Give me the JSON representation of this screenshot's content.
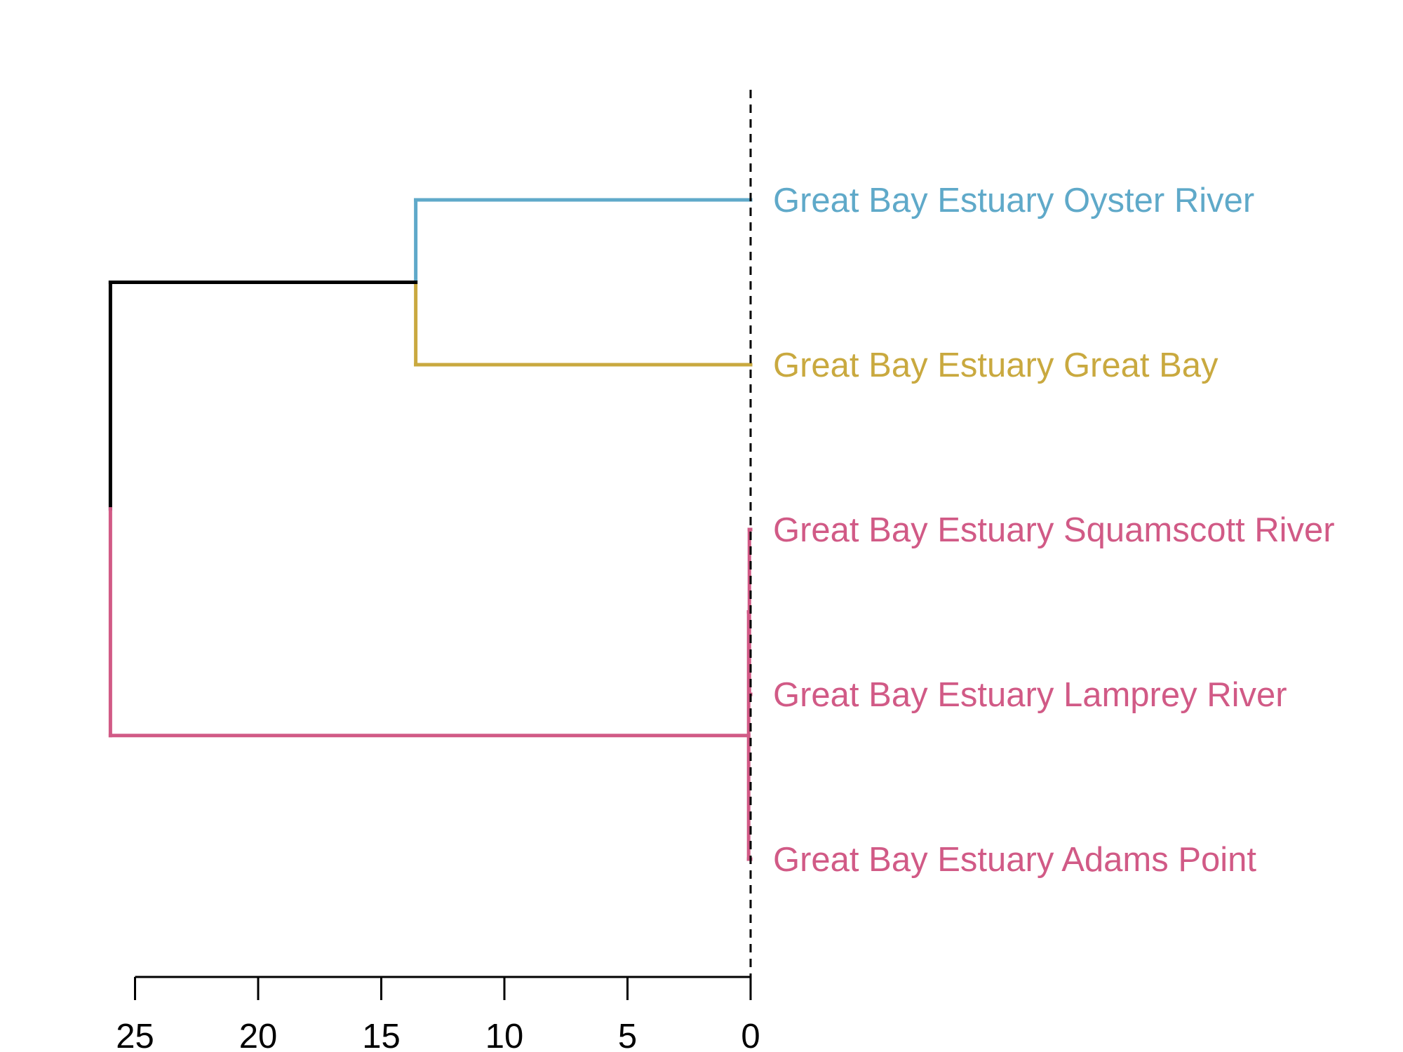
{
  "chart_data": {
    "type": "dendrogram",
    "orientation": "horizontal",
    "x_axis": {
      "ticks": [
        25,
        20,
        15,
        10,
        5,
        0
      ],
      "tick_labels": [
        "25",
        "20",
        "15",
        "10",
        "5",
        "0"
      ],
      "reversed": true
    },
    "cut_height": 0,
    "leaves": [
      {
        "label": "Great Bay Estuary Oyster River",
        "color": "#5fa9c9"
      },
      {
        "label": "Great Bay Estuary Great Bay",
        "color": "#c9a93f"
      },
      {
        "label": "Great Bay Estuary Squamscott River",
        "color": "#d15a86"
      },
      {
        "label": "Great Bay Estuary Lamprey River",
        "color": "#d15a86"
      },
      {
        "label": "Great Bay Estuary Adams Point",
        "color": "#d15a86"
      }
    ],
    "merges": [
      {
        "a": "leaf:2",
        "b": "leaf:3",
        "height": 0.05,
        "color": "#d15a86"
      },
      {
        "a": "merge:0",
        "b": "leaf:4",
        "height": 0.08,
        "color": "#d15a86"
      },
      {
        "a": "leaf:0",
        "b": "leaf:1",
        "height": 13.6,
        "color": "#5fa9c9",
        "color_b": "#c9a93f"
      },
      {
        "a": "merge:2",
        "b": "merge:1",
        "height": 26.0,
        "color": "#000000",
        "color_b": "#d15a86"
      }
    ],
    "colors": {
      "cluster_1": "#5fa9c9",
      "cluster_2": "#c9a93f",
      "cluster_3": "#d15a86",
      "root": "#000000"
    }
  }
}
